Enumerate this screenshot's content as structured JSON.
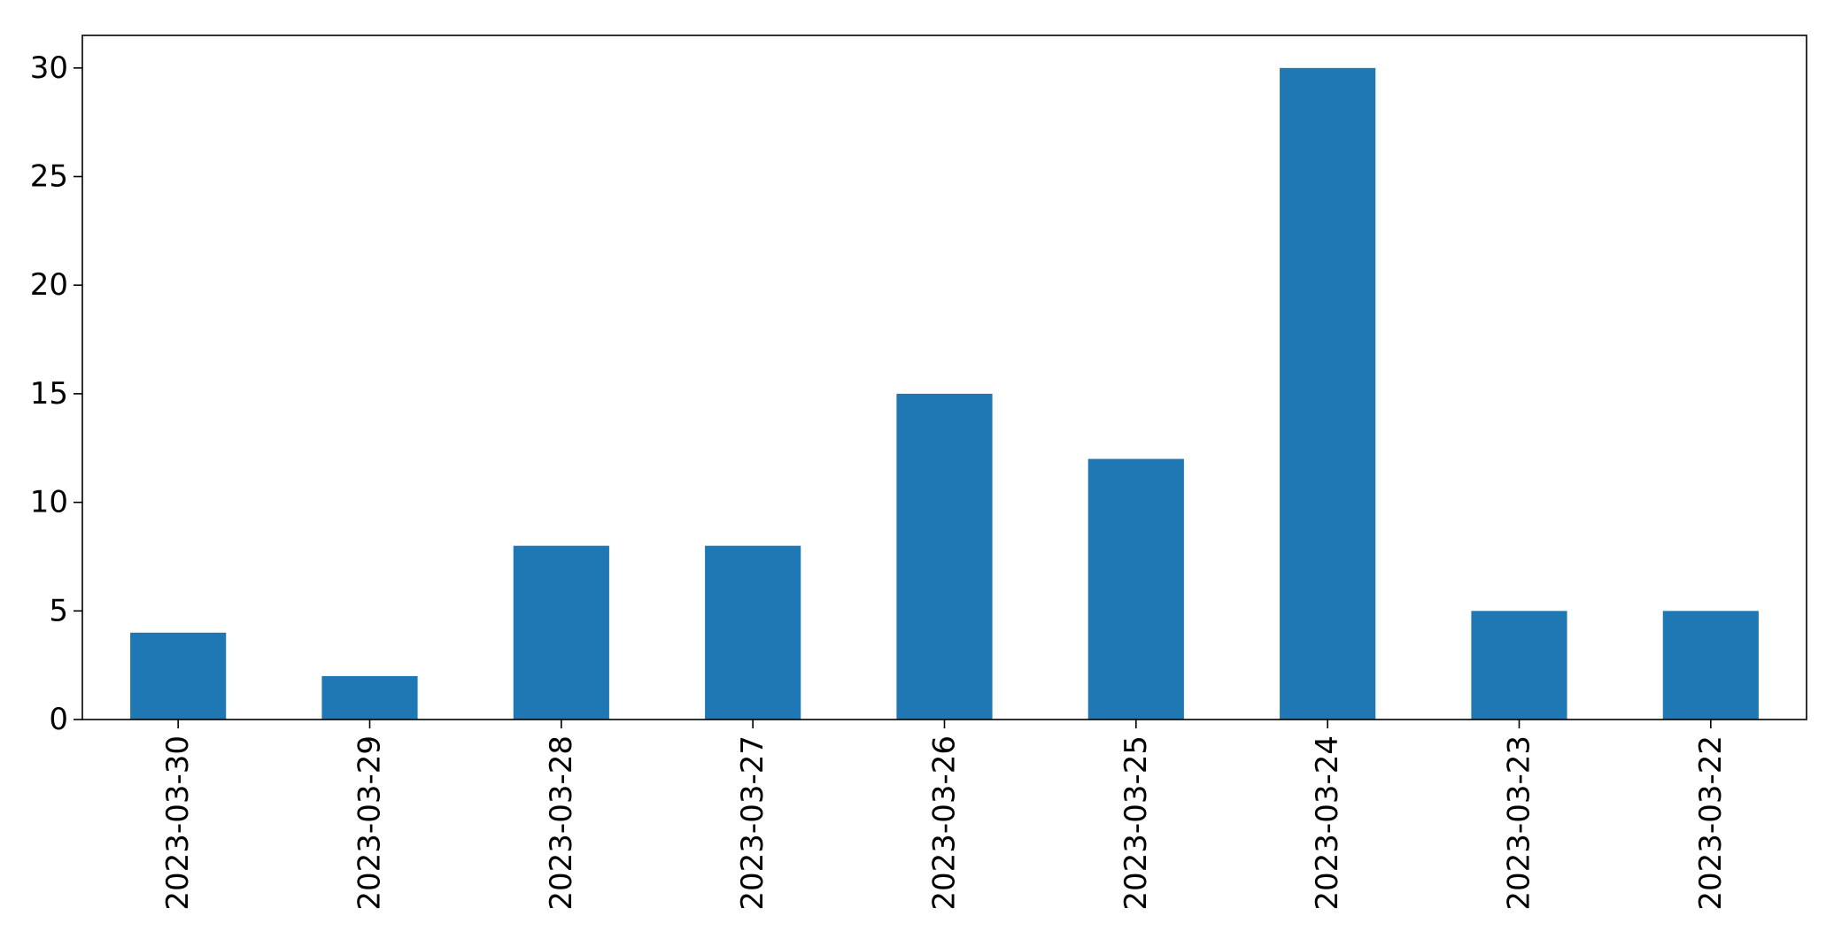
{
  "chart_data": {
    "type": "bar",
    "categories": [
      "2023-03-30",
      "2023-03-29",
      "2023-03-28",
      "2023-03-27",
      "2023-03-26",
      "2023-03-25",
      "2023-03-24",
      "2023-03-23",
      "2023-03-22"
    ],
    "values": [
      4,
      2,
      8,
      8,
      15,
      12,
      30,
      5,
      5
    ],
    "title": "",
    "xlabel": "",
    "ylabel": "",
    "ylim": [
      0,
      31.5
    ],
    "yticks": [
      0,
      5,
      10,
      15,
      20,
      25,
      30
    ],
    "grid": false,
    "legend": "none",
    "bar_color": "#1f77b4",
    "x_tick_rotation": "vertical"
  }
}
